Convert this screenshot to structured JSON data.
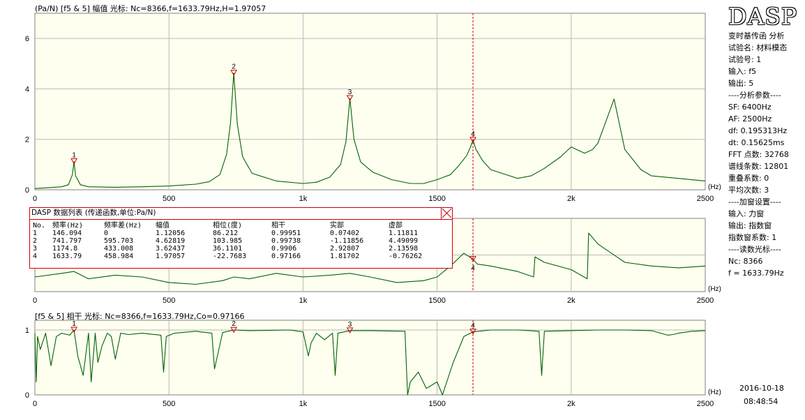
{
  "chart_data": [
    {
      "type": "line",
      "header": "(Pa/N)  [f5 & 5]  幅值  光标: Nc=8366,f=1633.79Hz,H=1.97057",
      "xunit": "(Hz)",
      "xlim": [
        0,
        2500
      ],
      "ylim": [
        0,
        7
      ],
      "x_ticks": [
        "0",
        "500",
        "1k",
        "1500",
        "2k",
        "2500"
      ],
      "y_ticks": [
        "0",
        "2",
        "4",
        "6"
      ],
      "cursor_x": 1633.79,
      "markers": [
        {
          "label": "1",
          "x": 146.094,
          "y": 1.12056
        },
        {
          "label": "2",
          "x": 741.797,
          "y": 4.62819
        },
        {
          "label": "3",
          "x": 1174.8,
          "y": 3.62437
        },
        {
          "label": "4",
          "x": 1633.79,
          "y": 1.97057
        }
      ],
      "series": [
        {
          "color": "#006400",
          "x": [
            0,
            50,
            100,
            125,
            140,
            146,
            152,
            170,
            200,
            300,
            400,
            500,
            600,
            650,
            690,
            715,
            730,
            741.8,
            755,
            775,
            810,
            900,
            1000,
            1050,
            1100,
            1140,
            1160,
            1174.8,
            1190,
            1215,
            1260,
            1330,
            1400,
            1450,
            1500,
            1550,
            1580,
            1610,
            1625,
            1633.79,
            1645,
            1670,
            1700,
            1800,
            1850,
            1900,
            1960,
            2000,
            2050,
            2080,
            2100,
            2160,
            2200,
            2260,
            2300,
            2400,
            2500
          ],
          "y": [
            0.05,
            0.08,
            0.12,
            0.2,
            0.6,
            1.12,
            0.55,
            0.2,
            0.12,
            0.1,
            0.12,
            0.15,
            0.22,
            0.32,
            0.6,
            1.4,
            2.7,
            4.63,
            2.6,
            1.3,
            0.65,
            0.35,
            0.25,
            0.3,
            0.5,
            1.0,
            1.9,
            3.62,
            2.0,
            1.1,
            0.7,
            0.4,
            0.25,
            0.25,
            0.4,
            0.6,
            0.95,
            1.35,
            1.7,
            1.97,
            1.6,
            1.15,
            0.8,
            0.45,
            0.55,
            0.85,
            1.3,
            1.7,
            1.45,
            1.6,
            1.85,
            3.6,
            1.6,
            0.8,
            0.55,
            0.45,
            0.35
          ]
        }
      ]
    },
    {
      "type": "line",
      "header": "",
      "xunit": "(Hz)",
      "xlim": [
        0,
        2500
      ],
      "ylim": [
        -200,
        200
      ],
      "x_ticks": [
        "0",
        "500",
        "1k",
        "1500",
        "2k",
        "2500"
      ],
      "y_ticks": [],
      "cursor_x": 1633.79,
      "markers": [
        {
          "label": "4",
          "x": 1633.79,
          "y": -22.7683
        }
      ],
      "series": [
        {
          "color": "#006400",
          "x": [
            0,
            100,
            146,
            200,
            300,
            400,
            500,
            600,
            700,
            742,
            800,
            900,
            1000,
            1100,
            1175,
            1250,
            1350,
            1450,
            1500,
            1550,
            1600,
            1633.79,
            1650,
            1700,
            1800,
            1860,
            1865,
            1900,
            2000,
            2060,
            2065,
            2100,
            2200,
            2300,
            2400,
            2500
          ],
          "y": [
            -120,
            -100,
            -90,
            -130,
            -110,
            -120,
            -150,
            -160,
            -140,
            -120,
            -130,
            -100,
            -120,
            -110,
            -100,
            -120,
            -150,
            -140,
            -120,
            -60,
            10,
            -22.7,
            -50,
            -60,
            -90,
            -120,
            -10,
            -40,
            -80,
            -130,
            120,
            60,
            -40,
            -60,
            -70,
            -60
          ]
        }
      ]
    },
    {
      "type": "line",
      "header": "[f5 & 5]  相干  光标: Nc=8366,f=1633.79Hz,Co=0.97166",
      "xunit": "(Hz)",
      "xlim": [
        0,
        2500
      ],
      "ylim": [
        0,
        1.15
      ],
      "x_ticks": [
        "0",
        "500",
        "1k",
        "1500",
        "2k",
        "2500"
      ],
      "y_ticks": [
        "0",
        "1"
      ],
      "cursor_x": 1633.79,
      "markers": [
        {
          "label": "1",
          "x": 146.094,
          "y": 0.99951
        },
        {
          "label": "2",
          "x": 741.797,
          "y": 0.99738
        },
        {
          "label": "3",
          "x": 1174.8,
          "y": 0.9906
        },
        {
          "label": "4",
          "x": 1633.79,
          "y": 0.97166
        }
      ],
      "series": [
        {
          "color": "#006400",
          "x": [
            0,
            5,
            10,
            20,
            40,
            60,
            80,
            100,
            130,
            146,
            160,
            180,
            200,
            210,
            225,
            235,
            250,
            270,
            285,
            300,
            320,
            350,
            400,
            470,
            480,
            490,
            520,
            600,
            660,
            670,
            700,
            742,
            800,
            950,
            1000,
            1020,
            1030,
            1050,
            1080,
            1110,
            1120,
            1130,
            1174.8,
            1250,
            1380,
            1390,
            1400,
            1430,
            1460,
            1500,
            1520,
            1560,
            1600,
            1633.79,
            1700,
            1800,
            1880,
            1890,
            1900,
            2000,
            2100,
            2200,
            2300,
            2360,
            2380,
            2400,
            2450,
            2500
          ],
          "y": [
            0.95,
            0.2,
            0.9,
            0.7,
            0.95,
            0.45,
            0.9,
            0.95,
            0.92,
            1.0,
            0.6,
            0.3,
            0.95,
            0.2,
            0.95,
            0.5,
            0.75,
            0.95,
            0.9,
            0.55,
            0.95,
            0.93,
            0.95,
            0.92,
            0.35,
            0.9,
            0.95,
            0.98,
            0.95,
            0.4,
            0.96,
            1.0,
            0.99,
            1.0,
            0.97,
            0.6,
            0.8,
            0.95,
            0.85,
            0.95,
            0.3,
            0.95,
            0.99,
            0.99,
            0.98,
            0.0,
            0.2,
            0.35,
            0.1,
            0.2,
            0.0,
            0.5,
            0.9,
            0.97,
            1.0,
            1.0,
            0.98,
            0.3,
            0.98,
            0.99,
            1.0,
            1.0,
            0.99,
            0.92,
            0.93,
            0.95,
            0.98,
            0.99
          ]
        }
      ]
    }
  ],
  "data_table": {
    "title": "DASP  数据列表 (传递函数,单位:Pa/N)",
    "columns": [
      "No.",
      "频率(Hz)",
      "频率差(Hz)",
      "幅值",
      "相位(度)",
      "相干",
      "实部",
      "虚部"
    ],
    "rows": [
      [
        "1",
        "146.094",
        "0",
        "1.12056",
        "86.212",
        "0.99951",
        "0.07402",
        "1.11811"
      ],
      [
        "2",
        "741.797",
        "595.703",
        "4.62819",
        "103.985",
        "0.99738",
        "-1.11856",
        "4.49099"
      ],
      [
        "3",
        "1174.8",
        "433.008",
        "3.62437",
        "36.1101",
        "0.9906",
        "2.92807",
        "2.13598"
      ],
      [
        "4",
        "1633.79",
        "458.984",
        "1.97057",
        "-22.7683",
        "0.97166",
        "1.81702",
        "-0.76262"
      ]
    ]
  },
  "sidebar": {
    "logo": "DASP",
    "lines": [
      "变时基传函 分析",
      "试验名: 材料模态",
      "试验号: 1",
      "输入: f5",
      "输出: 5",
      "----分析参数----",
      "SF: 6400Hz",
      "AF: 2500Hz",
      "df: 0.195313Hz",
      "dt: 0.15625ms",
      "FFT 点数: 32768",
      "谱线条数: 12801",
      "重叠系数: 0",
      "平均次数: 3",
      "----加窗设置----",
      "输入: 力窗",
      "输出: 指数窗",
      "指数窗系数: 1",
      "----读数光标----",
      "Nc: 8366",
      "f = 1633.79Hz"
    ],
    "date": "2016-10-18",
    "time": "08:48:54"
  },
  "colors": {
    "plot_bg": "#fffff0",
    "trace": "#006400",
    "cursor": "#d00000",
    "marker": "#d00000",
    "dialog_border": "#d00000"
  }
}
